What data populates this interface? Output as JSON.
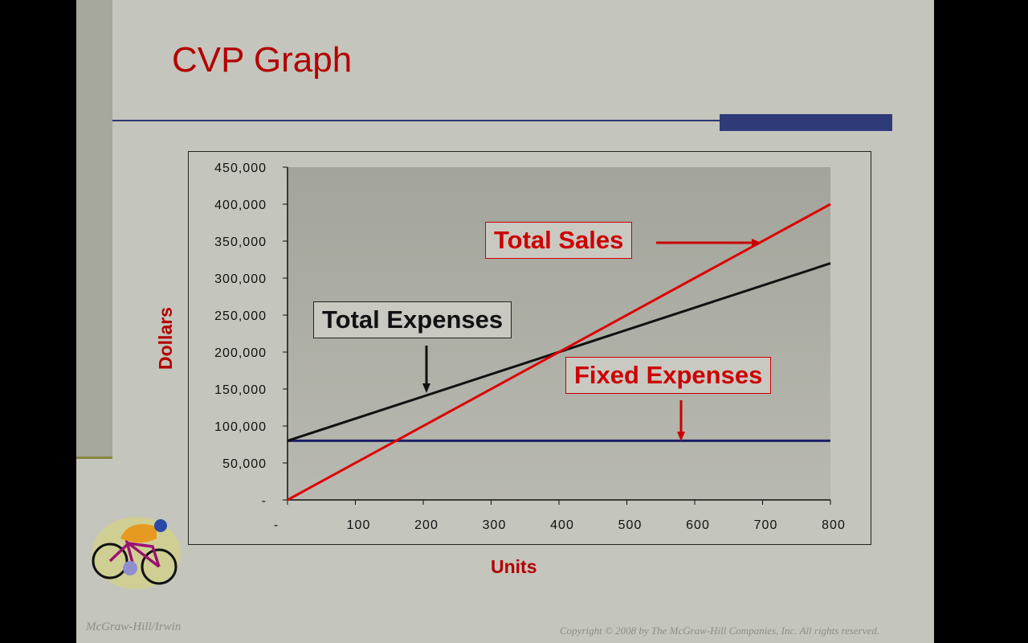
{
  "slide": {
    "title": "CVP Graph",
    "footer_left": "McGraw-Hill/Irwin",
    "footer_right": "Copyright © 2008 by The McGraw-Hill Companies, Inc. All rights reserved.",
    "accent_color": "#b30000",
    "rule_color": "#2e3b78",
    "clipart": "cyclist-icon"
  },
  "chart_data": {
    "type": "line",
    "xlabel": "Units",
    "ylabel": "Dollars",
    "xlim": [
      0,
      800
    ],
    "ylim": [
      0,
      450000
    ],
    "x_ticks": [
      0,
      100,
      200,
      300,
      400,
      500,
      600,
      700,
      800
    ],
    "x_tick_labels": [
      "-",
      "100",
      "200",
      "300",
      "400",
      "500",
      "600",
      "700",
      "800"
    ],
    "y_ticks": [
      0,
      50000,
      100000,
      150000,
      200000,
      250000,
      300000,
      350000,
      400000,
      450000
    ],
    "y_tick_labels": [
      "-",
      "50,000",
      "100,000",
      "150,000",
      "200,000",
      "250,000",
      "300,000",
      "350,000",
      "400,000",
      "450,000"
    ],
    "grid": false,
    "series": [
      {
        "name": "Total Sales",
        "color": "#dd0000",
        "x": [
          0,
          800
        ],
        "y": [
          0,
          400000
        ]
      },
      {
        "name": "Total Expenses",
        "color": "#111111",
        "x": [
          0,
          800
        ],
        "y": [
          80000,
          320000
        ]
      },
      {
        "name": "Fixed Expenses",
        "color": "#1a1f66",
        "x": [
          0,
          800
        ],
        "y": [
          80000,
          80000
        ]
      }
    ]
  }
}
